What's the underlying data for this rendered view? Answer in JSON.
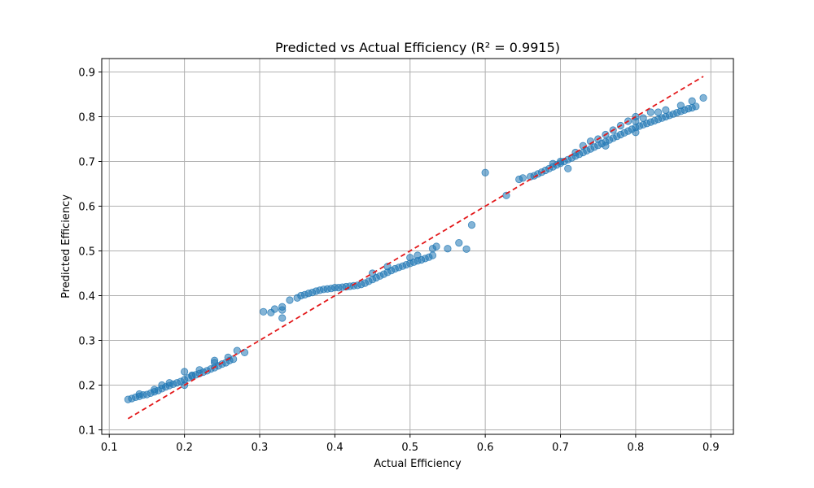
{
  "chart_data": {
    "type": "scatter",
    "title": "Predicted vs Actual Efficiency (R² = 0.9915)",
    "xlabel": "Actual Efficiency",
    "ylabel": "Predicted Efficiency",
    "xlim": [
      0.09,
      0.93
    ],
    "ylim": [
      0.09,
      0.93
    ],
    "xticks": [
      "0.1",
      "0.2",
      "0.3",
      "0.4",
      "0.5",
      "0.6",
      "0.7",
      "0.8",
      "0.9"
    ],
    "yticks": [
      "0.1",
      "0.2",
      "0.3",
      "0.4",
      "0.5",
      "0.6",
      "0.7",
      "0.8",
      "0.9"
    ],
    "grid": true,
    "point_color": "#1f77b4",
    "point_alpha": 0.55,
    "reference_line": {
      "x": [
        0.125,
        0.89
      ],
      "y": [
        0.125,
        0.89
      ],
      "color": "#e31a1c",
      "style": "dashed"
    },
    "series": [
      {
        "points": [
          [
            0.125,
            0.168
          ],
          [
            0.13,
            0.17
          ],
          [
            0.135,
            0.173
          ],
          [
            0.14,
            0.175
          ],
          [
            0.145,
            0.178
          ],
          [
            0.15,
            0.179
          ],
          [
            0.155,
            0.182
          ],
          [
            0.16,
            0.185
          ],
          [
            0.165,
            0.188
          ],
          [
            0.17,
            0.192
          ],
          [
            0.175,
            0.196
          ],
          [
            0.18,
            0.199
          ],
          [
            0.185,
            0.202
          ],
          [
            0.19,
            0.205
          ],
          [
            0.195,
            0.208
          ],
          [
            0.2,
            0.212
          ],
          [
            0.205,
            0.216
          ],
          [
            0.21,
            0.22
          ],
          [
            0.215,
            0.223
          ],
          [
            0.22,
            0.226
          ],
          [
            0.225,
            0.229
          ],
          [
            0.23,
            0.232
          ],
          [
            0.235,
            0.236
          ],
          [
            0.24,
            0.239
          ],
          [
            0.245,
            0.243
          ],
          [
            0.25,
            0.247
          ],
          [
            0.255,
            0.25
          ],
          [
            0.26,
            0.255
          ],
          [
            0.265,
            0.258
          ],
          [
            0.14,
            0.18
          ],
          [
            0.16,
            0.19
          ],
          [
            0.18,
            0.205
          ],
          [
            0.2,
            0.23
          ],
          [
            0.21,
            0.222
          ],
          [
            0.22,
            0.234
          ],
          [
            0.24,
            0.255
          ],
          [
            0.258,
            0.262
          ],
          [
            0.27,
            0.277
          ],
          [
            0.28,
            0.273
          ],
          [
            0.2,
            0.2
          ],
          [
            0.17,
            0.2
          ],
          [
            0.24,
            0.25
          ],
          [
            0.305,
            0.364
          ],
          [
            0.315,
            0.362
          ],
          [
            0.32,
            0.37
          ],
          [
            0.33,
            0.368
          ],
          [
            0.33,
            0.375
          ],
          [
            0.33,
            0.35
          ],
          [
            0.34,
            0.39
          ],
          [
            0.35,
            0.395
          ],
          [
            0.355,
            0.4
          ],
          [
            0.36,
            0.402
          ],
          [
            0.365,
            0.405
          ],
          [
            0.37,
            0.407
          ],
          [
            0.375,
            0.41
          ],
          [
            0.38,
            0.412
          ],
          [
            0.385,
            0.414
          ],
          [
            0.39,
            0.415
          ],
          [
            0.395,
            0.416
          ],
          [
            0.4,
            0.418
          ],
          [
            0.405,
            0.418
          ],
          [
            0.41,
            0.419
          ],
          [
            0.415,
            0.42
          ],
          [
            0.42,
            0.421
          ],
          [
            0.425,
            0.422
          ],
          [
            0.43,
            0.423
          ],
          [
            0.435,
            0.425
          ],
          [
            0.44,
            0.428
          ],
          [
            0.445,
            0.432
          ],
          [
            0.45,
            0.436
          ],
          [
            0.455,
            0.44
          ],
          [
            0.46,
            0.444
          ],
          [
            0.465,
            0.448
          ],
          [
            0.47,
            0.452
          ],
          [
            0.475,
            0.456
          ],
          [
            0.48,
            0.46
          ],
          [
            0.485,
            0.463
          ],
          [
            0.49,
            0.466
          ],
          [
            0.495,
            0.469
          ],
          [
            0.5,
            0.472
          ],
          [
            0.505,
            0.475
          ],
          [
            0.51,
            0.478
          ],
          [
            0.515,
            0.48
          ],
          [
            0.52,
            0.483
          ],
          [
            0.525,
            0.486
          ],
          [
            0.53,
            0.49
          ],
          [
            0.45,
            0.45
          ],
          [
            0.47,
            0.465
          ],
          [
            0.5,
            0.485
          ],
          [
            0.51,
            0.49
          ],
          [
            0.53,
            0.505
          ],
          [
            0.535,
            0.51
          ],
          [
            0.55,
            0.505
          ],
          [
            0.565,
            0.518
          ],
          [
            0.575,
            0.504
          ],
          [
            0.582,
            0.558
          ],
          [
            0.6,
            0.675
          ],
          [
            0.628,
            0.624
          ],
          [
            0.645,
            0.66
          ],
          [
            0.65,
            0.663
          ],
          [
            0.66,
            0.666
          ],
          [
            0.665,
            0.668
          ],
          [
            0.67,
            0.672
          ],
          [
            0.675,
            0.676
          ],
          [
            0.68,
            0.68
          ],
          [
            0.685,
            0.684
          ],
          [
            0.69,
            0.688
          ],
          [
            0.695,
            0.692
          ],
          [
            0.7,
            0.696
          ],
          [
            0.705,
            0.7
          ],
          [
            0.71,
            0.704
          ],
          [
            0.715,
            0.708
          ],
          [
            0.72,
            0.712
          ],
          [
            0.725,
            0.716
          ],
          [
            0.73,
            0.72
          ],
          [
            0.735,
            0.724
          ],
          [
            0.74,
            0.728
          ],
          [
            0.745,
            0.732
          ],
          [
            0.75,
            0.736
          ],
          [
            0.755,
            0.74
          ],
          [
            0.76,
            0.744
          ],
          [
            0.765,
            0.748
          ],
          [
            0.77,
            0.752
          ],
          [
            0.775,
            0.756
          ],
          [
            0.78,
            0.76
          ],
          [
            0.785,
            0.764
          ],
          [
            0.79,
            0.768
          ],
          [
            0.795,
            0.772
          ],
          [
            0.8,
            0.776
          ],
          [
            0.805,
            0.779
          ],
          [
            0.81,
            0.782
          ],
          [
            0.815,
            0.785
          ],
          [
            0.82,
            0.788
          ],
          [
            0.825,
            0.791
          ],
          [
            0.83,
            0.794
          ],
          [
            0.835,
            0.797
          ],
          [
            0.84,
            0.8
          ],
          [
            0.845,
            0.803
          ],
          [
            0.85,
            0.806
          ],
          [
            0.855,
            0.809
          ],
          [
            0.86,
            0.812
          ],
          [
            0.865,
            0.815
          ],
          [
            0.87,
            0.818
          ],
          [
            0.875,
            0.82
          ],
          [
            0.88,
            0.823
          ],
          [
            0.89,
            0.842
          ],
          [
            0.7,
            0.7
          ],
          [
            0.71,
            0.684
          ],
          [
            0.72,
            0.72
          ],
          [
            0.74,
            0.745
          ],
          [
            0.76,
            0.76
          ],
          [
            0.78,
            0.78
          ],
          [
            0.8,
            0.79
          ],
          [
            0.82,
            0.81
          ],
          [
            0.84,
            0.815
          ],
          [
            0.86,
            0.825
          ],
          [
            0.875,
            0.835
          ],
          [
            0.79,
            0.79
          ],
          [
            0.8,
            0.8
          ],
          [
            0.81,
            0.797
          ],
          [
            0.83,
            0.81
          ],
          [
            0.77,
            0.77
          ],
          [
            0.75,
            0.75
          ],
          [
            0.73,
            0.735
          ],
          [
            0.69,
            0.695
          ],
          [
            0.8,
            0.765
          ],
          [
            0.76,
            0.735
          ]
        ]
      }
    ]
  }
}
